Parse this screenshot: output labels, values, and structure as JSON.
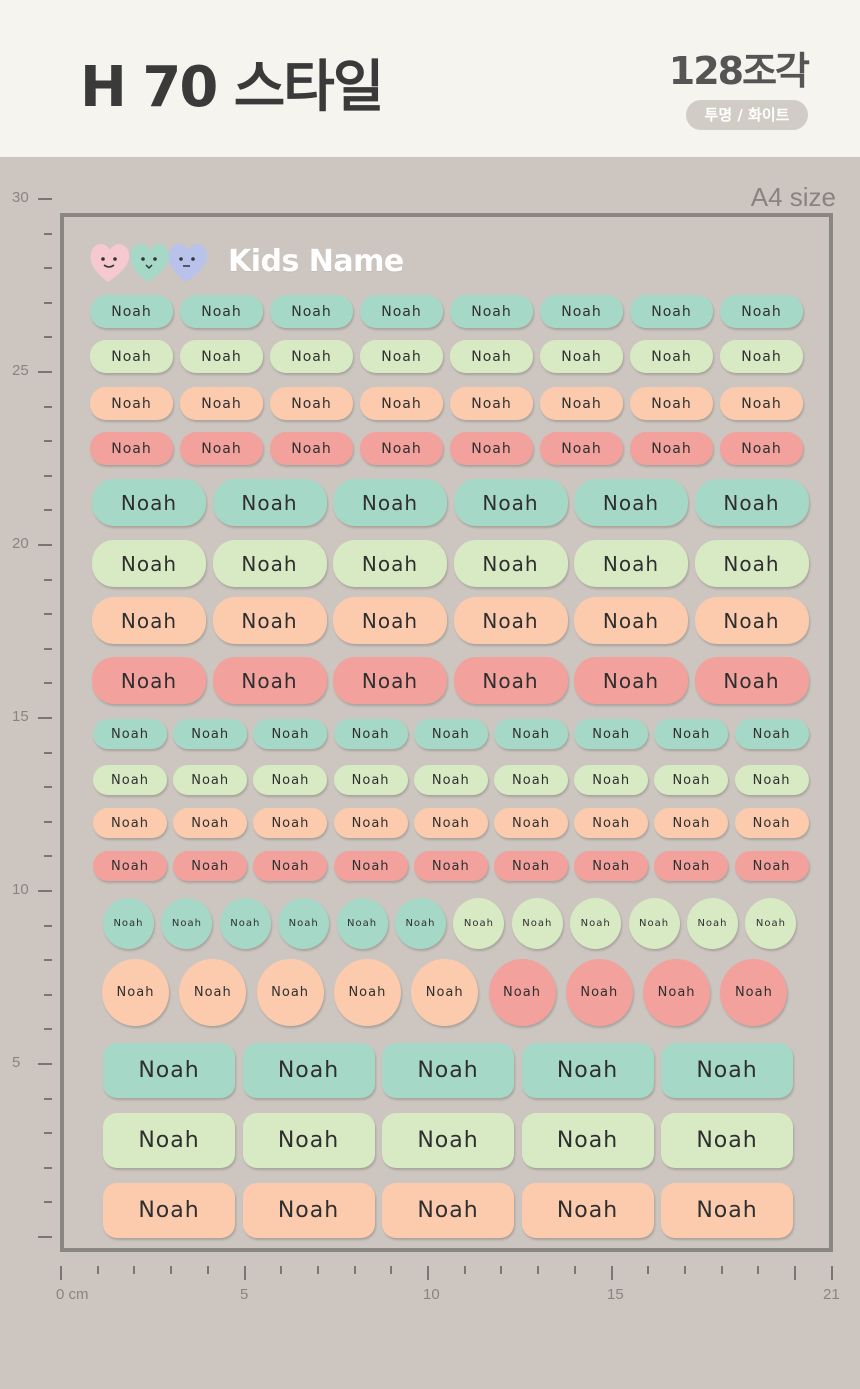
{
  "header": {
    "title": "H 70 스타일",
    "count": "128조각",
    "badge": "투명 / 화이트"
  },
  "sheet_size_label": "A4 size",
  "brand": "Kids Name",
  "sticker_text": "Noah",
  "colors": {
    "mint": "#a6d8c8",
    "lime": "#d8eac4",
    "peach": "#fccbae",
    "coral": "#f3a19c"
  },
  "ruler_vertical_labels": [
    "30",
    "25",
    "20",
    "15",
    "10",
    "5"
  ],
  "ruler_horizontal_labels": [
    "0 cm",
    "5",
    "10",
    "15",
    "21"
  ]
}
